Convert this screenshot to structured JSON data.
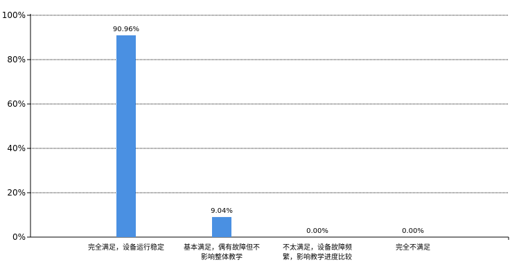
{
  "chart_data": {
    "type": "bar",
    "title": "",
    "xlabel": "",
    "ylabel": "",
    "categories": [
      [
        "完全满足，设备运行稳定"
      ],
      [
        "基本满足，偶有故障但不",
        "影响整体教学"
      ],
      [
        "不太满足，设备故障频",
        "繁，影响教学进度比较"
      ],
      [
        "完全不满足"
      ]
    ],
    "values": [
      90.96,
      9.04,
      0.0,
      0.0
    ],
    "data_labels": [
      "90.96%",
      "9.04%",
      "0.00%",
      "0.00%"
    ],
    "ylim": [
      0,
      100
    ],
    "yticks": [
      "0%",
      "20%",
      "40%",
      "60%",
      "80%",
      "100%"
    ],
    "grid": true,
    "bar_color": "#4A90E2"
  }
}
